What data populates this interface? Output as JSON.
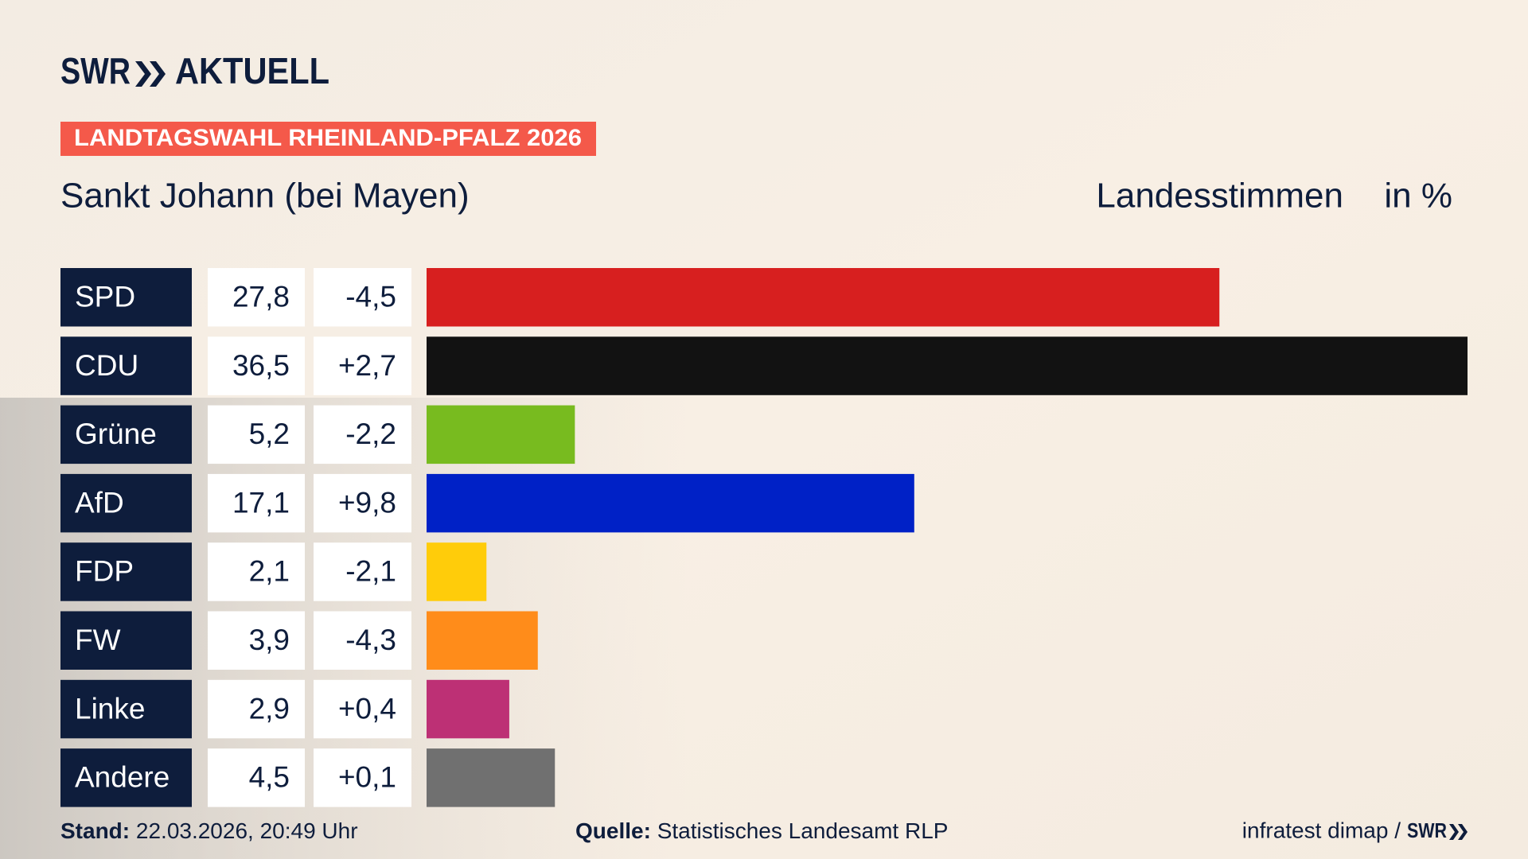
{
  "brand": {
    "name": "SWR",
    "product": "AKTUELL"
  },
  "banner": "LANDTAGSWAHL RHEINLAND-PFALZ 2026",
  "chart_data": {
    "type": "bar",
    "title": "Sankt Johann (bei Mayen)",
    "value_header": "Landesstimmen",
    "unit": "in %",
    "categories": [
      "SPD",
      "CDU",
      "Grüne",
      "AfD",
      "FDP",
      "FW",
      "Linke",
      "Andere"
    ],
    "values": [
      27.8,
      36.5,
      5.2,
      17.1,
      2.1,
      3.9,
      2.9,
      4.5
    ],
    "value_labels": [
      "27,8",
      "36,5",
      "5,2",
      "17,1",
      "2,1",
      "3,9",
      "2,9",
      "4,5"
    ],
    "changes": [
      -4.5,
      2.7,
      -2.2,
      9.8,
      -2.1,
      -4.3,
      0.4,
      0.1
    ],
    "change_labels": [
      "-4,5",
      "+2,7",
      "-2,2",
      "+9,8",
      "-2,1",
      "-4,3",
      "+0,4",
      "+0,1"
    ],
    "colors": [
      "#d71f1f",
      "#121212",
      "#78bb1f",
      "#0021c6",
      "#ffcc0a",
      "#ff8c1a",
      "#bd3075",
      "#707070"
    ]
  },
  "footer": {
    "date_label": "Stand:",
    "date": "22.03.2026, 20:49 Uhr",
    "source_label": "Quelle:",
    "source": "Statistisches Landesamt RLP",
    "credit": "infratest dimap /",
    "credit_brand": "SWR"
  }
}
